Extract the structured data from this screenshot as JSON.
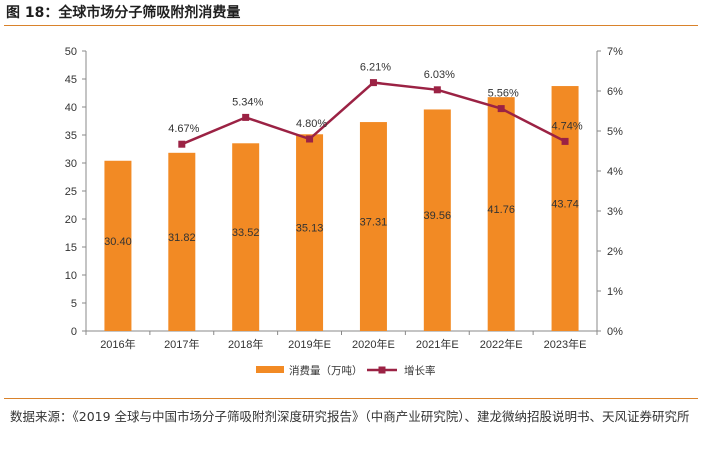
{
  "title": "图 18：全球市场分子筛吸附剂消费量",
  "source": "数据来源：《2019 全球与中国市场分子筛吸附剂深度研究报告》（中商产业研究院）、建龙微纳招股说明书、天风证券研究所",
  "colors": {
    "bar": "#F28A24",
    "line": "#9B2244",
    "accent": "#d9822b"
  },
  "chart_data": {
    "type": "bar+line",
    "categories": [
      "2016年",
      "2017年",
      "2018年",
      "2019年E",
      "2020年E",
      "2021年E",
      "2022年E",
      "2023年E"
    ],
    "series": [
      {
        "name": "消费量（万吨）",
        "type": "bar",
        "axis": "left",
        "values": [
          30.4,
          31.82,
          33.52,
          35.13,
          37.31,
          39.56,
          41.76,
          43.74
        ],
        "labels": [
          "30.40",
          "31.82",
          "33.52",
          "35.13",
          "37.31",
          "39.56",
          "41.76",
          "43.74"
        ]
      },
      {
        "name": "增长率",
        "type": "line",
        "axis": "right",
        "values": [
          null,
          4.67,
          5.34,
          4.8,
          6.21,
          6.03,
          5.56,
          4.74
        ],
        "labels": [
          "",
          "4.67%",
          "5.34%",
          "4.80%",
          "6.21%",
          "6.03%",
          "5.56%",
          "4.74%"
        ]
      }
    ],
    "y_left": {
      "ylim": [
        0,
        50
      ],
      "ticks": [
        "0",
        "5",
        "10",
        "15",
        "20",
        "25",
        "30",
        "35",
        "40",
        "45",
        "50"
      ]
    },
    "y_right": {
      "ylim": [
        0,
        7
      ],
      "ticks": [
        "0%",
        "1%",
        "2%",
        "3%",
        "4%",
        "5%",
        "6%",
        "7%"
      ]
    },
    "legend": {
      "position": "bottom",
      "items": [
        "消费量（万吨）",
        "增长率"
      ]
    },
    "grid": false
  }
}
